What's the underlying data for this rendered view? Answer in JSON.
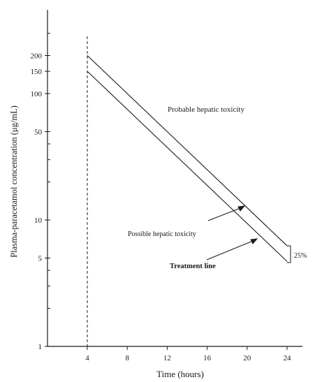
{
  "chart_data": {
    "type": "line",
    "xlabel": "Time (hours)",
    "ylabel": "Plasma-paracetamol concentration (μg/mL)",
    "y_scale": "log",
    "xlim": [
      0,
      26
    ],
    "ylim": [
      1,
      300
    ],
    "grid": false,
    "x_ticks": [
      {
        "value": 4,
        "label": "4"
      },
      {
        "value": 8,
        "label": "8"
      },
      {
        "value": 12,
        "label": "12"
      },
      {
        "value": 16,
        "label": "16"
      },
      {
        "value": 20,
        "label": "20"
      },
      {
        "value": 24,
        "label": "24"
      }
    ],
    "y_ticks": [
      {
        "value": 1,
        "label": "1"
      },
      {
        "value": 5,
        "label": "5"
      },
      {
        "value": 10,
        "label": "10"
      },
      {
        "value": 50,
        "label": "50"
      },
      {
        "value": 100,
        "label": "100"
      },
      {
        "value": 150,
        "label": "150"
      },
      {
        "value": 200,
        "label": "200"
      }
    ],
    "y_minor_ticks": [
      2,
      3,
      4,
      20,
      30,
      40,
      300
    ],
    "reference_lines": [
      {
        "type": "vertical",
        "x": 4,
        "style": "dashed"
      }
    ],
    "series": [
      {
        "x": [
          4,
          24
        ],
        "y": [
          200,
          6.25
        ]
      },
      {
        "x": [
          4,
          24
        ],
        "y": [
          150,
          4.7
        ]
      }
    ],
    "annotations": {
      "region_label": "Probable hepatic toxicity",
      "possible_label": "Possible hepatic toxicity",
      "treatment_label": "Treatment line",
      "bracket_label": "25%"
    }
  }
}
